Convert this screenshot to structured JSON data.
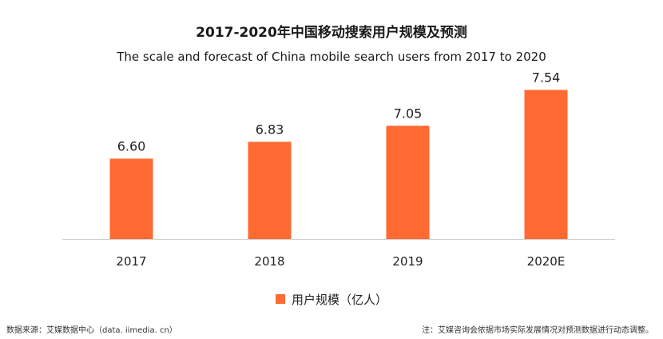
{
  "chart_data": {
    "type": "bar",
    "title": "2017-2020年中国移动搜索用户规模及预测",
    "subtitle": "The scale and forecast of China mobile search users from 2017 to 2020",
    "categories": [
      "2017",
      "2018",
      "2019",
      "2020E"
    ],
    "series": [
      {
        "name": "用户规模（亿人）",
        "values": [
          6.6,
          6.83,
          7.05,
          7.54
        ],
        "color": "#FF6A32"
      }
    ],
    "value_labels": [
      "6.60",
      "6.83",
      "7.05",
      "7.54"
    ],
    "legend_position": "bottom-center",
    "grid": false,
    "ylim": [
      5.5,
      7.6
    ]
  },
  "footer": {
    "source": "数据来源：艾媒数据中心（data. iimedia. cn）",
    "note": "注：艾媒咨询会依据市场实际发展情况对预测数据进行动态调整。"
  },
  "colors": {
    "bar": "#FF6A32",
    "axis": "#d0d0d0"
  }
}
